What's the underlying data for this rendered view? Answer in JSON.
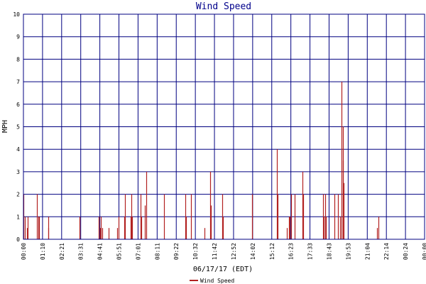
{
  "chart_data": {
    "type": "bar",
    "title": "Wind Speed",
    "xlabel": "06/17/17 (EDT)",
    "ylabel": "MPH",
    "ylim": [
      0,
      10
    ],
    "yticks": [
      "0",
      "1",
      "2",
      "3",
      "4",
      "5",
      "6",
      "7",
      "8",
      "9",
      "10"
    ],
    "xticks": [
      "00:00",
      "01:10",
      "02:21",
      "03:31",
      "04:41",
      "05:51",
      "07:01",
      "08:11",
      "09:22",
      "10:32",
      "11:42",
      "12:52",
      "14:02",
      "15:12",
      "16:23",
      "17:33",
      "18:43",
      "19:53",
      "21:04",
      "22:14",
      "00:24",
      "00:00"
    ],
    "xlim_minutes": [
      0,
      1440
    ],
    "grid": true,
    "legend": {
      "placement": "bottom-center",
      "entries": [
        "Wind Speed"
      ]
    },
    "colors": {
      "series": "#b22222",
      "grid": "#000080",
      "title": "#00008b"
    },
    "series": [
      {
        "name": "Wind Speed",
        "points": [
          [
            0,
            2
          ],
          [
            4,
            1
          ],
          [
            12,
            0.5
          ],
          [
            15,
            1
          ],
          [
            48,
            2
          ],
          [
            53,
            1
          ],
          [
            57,
            1
          ],
          [
            88,
            1
          ],
          [
            90,
            0.5
          ],
          [
            202,
            1
          ],
          [
            270,
            1
          ],
          [
            274,
            0.5
          ],
          [
            279,
            1
          ],
          [
            283,
            0.5
          ],
          [
            305,
            0.5
          ],
          [
            337,
            0.5
          ],
          [
            341,
            1
          ],
          [
            361,
            1
          ],
          [
            365,
            2
          ],
          [
            386,
            1
          ],
          [
            388,
            2
          ],
          [
            390,
            1
          ],
          [
            420,
            2
          ],
          [
            423,
            1
          ],
          [
            437,
            1.5
          ],
          [
            441,
            3
          ],
          [
            504,
            2
          ],
          [
            580,
            2
          ],
          [
            584,
            1
          ],
          [
            601,
            2
          ],
          [
            649,
            0.5
          ],
          [
            671,
            3
          ],
          [
            674,
            1.5
          ],
          [
            713,
            2
          ],
          [
            715,
            1
          ],
          [
            821,
            2
          ],
          [
            909,
            4
          ],
          [
            913,
            2
          ],
          [
            945,
            0.5
          ],
          [
            952,
            1
          ],
          [
            955,
            1
          ],
          [
            960,
            2
          ],
          [
            973,
            2
          ],
          [
            1002,
            3
          ],
          [
            1004,
            2
          ],
          [
            1075,
            2
          ],
          [
            1077,
            1
          ],
          [
            1082,
            2
          ],
          [
            1086,
            1
          ],
          [
            1116,
            2
          ],
          [
            1130,
            2
          ],
          [
            1137,
            1
          ],
          [
            1143,
            7
          ],
          [
            1146,
            5
          ],
          [
            1148,
            3.5
          ],
          [
            1150,
            2.5
          ],
          [
            1270,
            0.5
          ],
          [
            1275,
            1
          ]
        ]
      }
    ]
  }
}
